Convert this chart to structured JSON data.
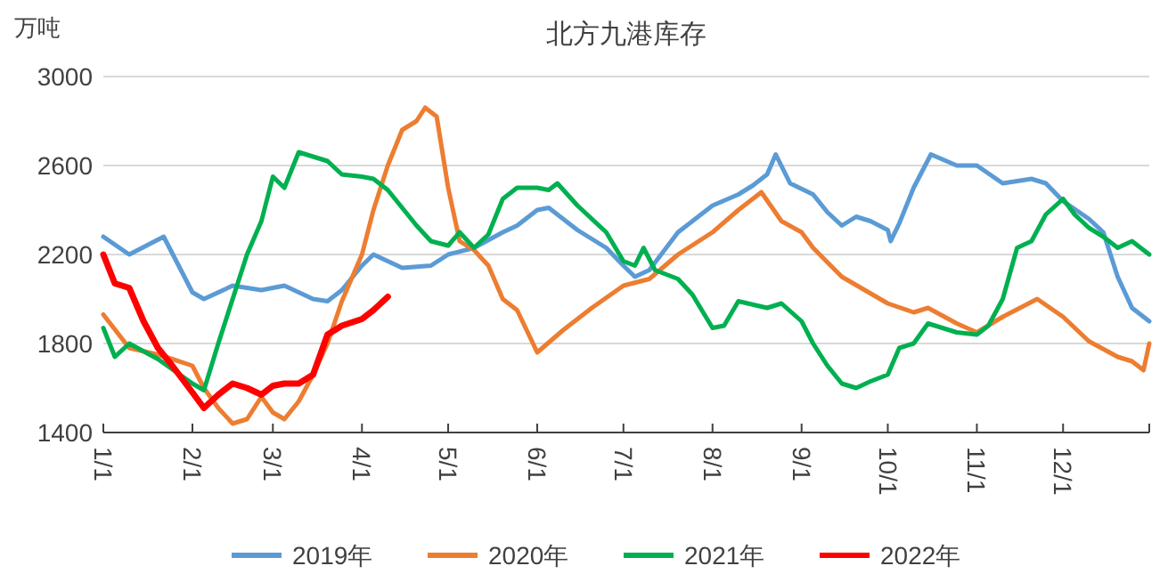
{
  "chart_data": {
    "type": "line",
    "title": "北方九港库存",
    "ylabel": "万吨",
    "xlim": [
      "--01-01",
      "--12-31"
    ],
    "xticks": [
      {
        "value": "--01-01",
        "label": "1/1"
      },
      {
        "value": "--02-01",
        "label": "2/1"
      },
      {
        "value": "--03-01",
        "label": "3/1"
      },
      {
        "value": "--04-01",
        "label": "4/1"
      },
      {
        "value": "--05-01",
        "label": "5/1"
      },
      {
        "value": "--06-01",
        "label": "6/1"
      },
      {
        "value": "--07-01",
        "label": "7/1"
      },
      {
        "value": "--08-01",
        "label": "8/1"
      },
      {
        "value": "--09-01",
        "label": "9/1"
      },
      {
        "value": "--10-01",
        "label": "10/1"
      },
      {
        "value": "--11-01",
        "label": "11/1"
      },
      {
        "value": "--12-01",
        "label": "12/1"
      },
      {
        "value": "--12-31",
        "label": null
      }
    ],
    "ylim": [
      1400,
      3000
    ],
    "yticks": [
      1400,
      1800,
      2200,
      2600,
      3000
    ],
    "grid": "y",
    "legend": "bottom",
    "marker": "none",
    "line_style": "solid",
    "series": [
      {
        "name": "2019年",
        "color": "#5b9bd5",
        "x": [
          "--01-01",
          "--01-10",
          "--01-22",
          "--02-01",
          "--02-05",
          "--02-15",
          "--02-25",
          "--03-05",
          "--03-15",
          "--03-20",
          "--03-25",
          "--04-01",
          "--04-05",
          "--04-15",
          "--04-25",
          "--05-01",
          "--05-10",
          "--05-20",
          "--05-25",
          "--06-01",
          "--06-05",
          "--06-15",
          "--06-25",
          "--07-01",
          "--07-05",
          "--07-10",
          "--07-20",
          "--08-01",
          "--08-10",
          "--08-15",
          "--08-20",
          "--08-23",
          "--08-28",
          "--09-05",
          "--09-10",
          "--09-15",
          "--09-20",
          "--09-25",
          "--10-01",
          "--10-02",
          "--10-05",
          "--10-10",
          "--10-16",
          "--10-25",
          "--11-01",
          "--11-10",
          "--11-20",
          "--11-25",
          "--12-01",
          "--12-10",
          "--12-15",
          "--12-20",
          "--12-25",
          "--12-31"
        ],
        "values": [
          2280,
          2200,
          2280,
          2030,
          2000,
          2060,
          2040,
          2060,
          2000,
          1990,
          2040,
          2150,
          2200,
          2140,
          2150,
          2200,
          2230,
          2300,
          2330,
          2400,
          2410,
          2310,
          2230,
          2150,
          2100,
          2130,
          2300,
          2420,
          2470,
          2510,
          2560,
          2650,
          2520,
          2470,
          2390,
          2330,
          2370,
          2350,
          2310,
          2260,
          2340,
          2500,
          2650,
          2600,
          2600,
          2520,
          2540,
          2520,
          2440,
          2360,
          2300,
          2100,
          1960,
          1900
        ]
      },
      {
        "name": "2020年",
        "color": "#ed7d31",
        "x": [
          "--01-01",
          "--01-10",
          "--01-20",
          "--01-25",
          "--02-01",
          "--02-05",
          "--02-10",
          "--02-15",
          "--02-20",
          "--02-25",
          "--03-01",
          "--03-05",
          "--03-10",
          "--03-15",
          "--03-20",
          "--03-25",
          "--04-01",
          "--04-05",
          "--04-10",
          "--04-15",
          "--04-20",
          "--04-23",
          "--04-27",
          "--05-01",
          "--05-05",
          "--05-10",
          "--05-15",
          "--05-20",
          "--05-25",
          "--06-01",
          "--06-10",
          "--06-20",
          "--07-01",
          "--07-10",
          "--07-20",
          "--08-01",
          "--08-10",
          "--08-18",
          "--08-25",
          "--09-01",
          "--09-05",
          "--09-15",
          "--10-01",
          "--10-10",
          "--10-15",
          "--10-25",
          "--11-01",
          "--11-10",
          "--11-22",
          "--12-01",
          "--12-10",
          "--12-20",
          "--12-25",
          "--12-29",
          "--12-31"
        ],
        "values": [
          1930,
          1780,
          1750,
          1730,
          1700,
          1600,
          1510,
          1440,
          1460,
          1560,
          1490,
          1460,
          1540,
          1660,
          1800,
          1990,
          2200,
          2400,
          2600,
          2760,
          2800,
          2860,
          2820,
          2500,
          2260,
          2220,
          2150,
          2000,
          1950,
          1760,
          1860,
          1960,
          2060,
          2090,
          2200,
          2300,
          2400,
          2480,
          2350,
          2300,
          2230,
          2100,
          1980,
          1940,
          1960,
          1890,
          1850,
          1920,
          2000,
          1920,
          1810,
          1740,
          1720,
          1680,
          1800
        ]
      },
      {
        "name": "2021年",
        "color": "#00b050",
        "x": [
          "--01-01",
          "--01-05",
          "--01-10",
          "--01-20",
          "--02-01",
          "--02-05",
          "--02-10",
          "--02-15",
          "--02-20",
          "--02-25",
          "--03-01",
          "--03-05",
          "--03-10",
          "--03-20",
          "--03-25",
          "--04-01",
          "--04-05",
          "--04-10",
          "--04-20",
          "--04-25",
          "--05-01",
          "--05-05",
          "--05-10",
          "--05-15",
          "--05-20",
          "--05-25",
          "--06-01",
          "--06-05",
          "--06-08",
          "--06-15",
          "--06-25",
          "--07-01",
          "--07-05",
          "--07-08",
          "--07-12",
          "--07-20",
          "--07-25",
          "--08-01",
          "--08-05",
          "--08-10",
          "--08-20",
          "--08-25",
          "--09-01",
          "--09-05",
          "--09-10",
          "--09-15",
          "--09-20",
          "--09-25",
          "--10-01",
          "--10-05",
          "--10-10",
          "--10-15",
          "--10-20",
          "--10-25",
          "--11-01",
          "--11-05",
          "--11-10",
          "--11-15",
          "--11-20",
          "--11-25",
          "--12-01",
          "--12-05",
          "--12-10",
          "--12-15",
          "--12-20",
          "--12-25",
          "--12-31"
        ],
        "values": [
          1870,
          1740,
          1800,
          1730,
          1620,
          1590,
          1800,
          2000,
          2200,
          2350,
          2550,
          2500,
          2660,
          2620,
          2560,
          2550,
          2540,
          2490,
          2330,
          2260,
          2240,
          2300,
          2230,
          2290,
          2450,
          2500,
          2500,
          2490,
          2520,
          2420,
          2300,
          2170,
          2150,
          2230,
          2130,
          2090,
          2020,
          1870,
          1880,
          1990,
          1960,
          1980,
          1900,
          1800,
          1700,
          1620,
          1600,
          1630,
          1660,
          1780,
          1800,
          1890,
          1870,
          1850,
          1840,
          1880,
          2000,
          2230,
          2260,
          2380,
          2450,
          2380,
          2320,
          2280,
          2230,
          2260,
          2200
        ]
      },
      {
        "name": "2022年",
        "color": "#ff0000",
        "x": [
          "--01-01",
          "--01-05",
          "--01-10",
          "--01-15",
          "--01-20",
          "--01-25",
          "--02-01",
          "--02-05",
          "--02-10",
          "--02-15",
          "--02-20",
          "--02-25",
          "--03-01",
          "--03-05",
          "--03-10",
          "--03-15",
          "--03-20",
          "--03-25",
          "--04-01",
          "--04-05",
          "--04-10"
        ],
        "values": [
          2200,
          2070,
          2050,
          1900,
          1780,
          1700,
          1580,
          1510,
          1570,
          1620,
          1600,
          1570,
          1610,
          1620,
          1620,
          1660,
          1840,
          1880,
          1910,
          1950,
          2010
        ]
      }
    ]
  }
}
